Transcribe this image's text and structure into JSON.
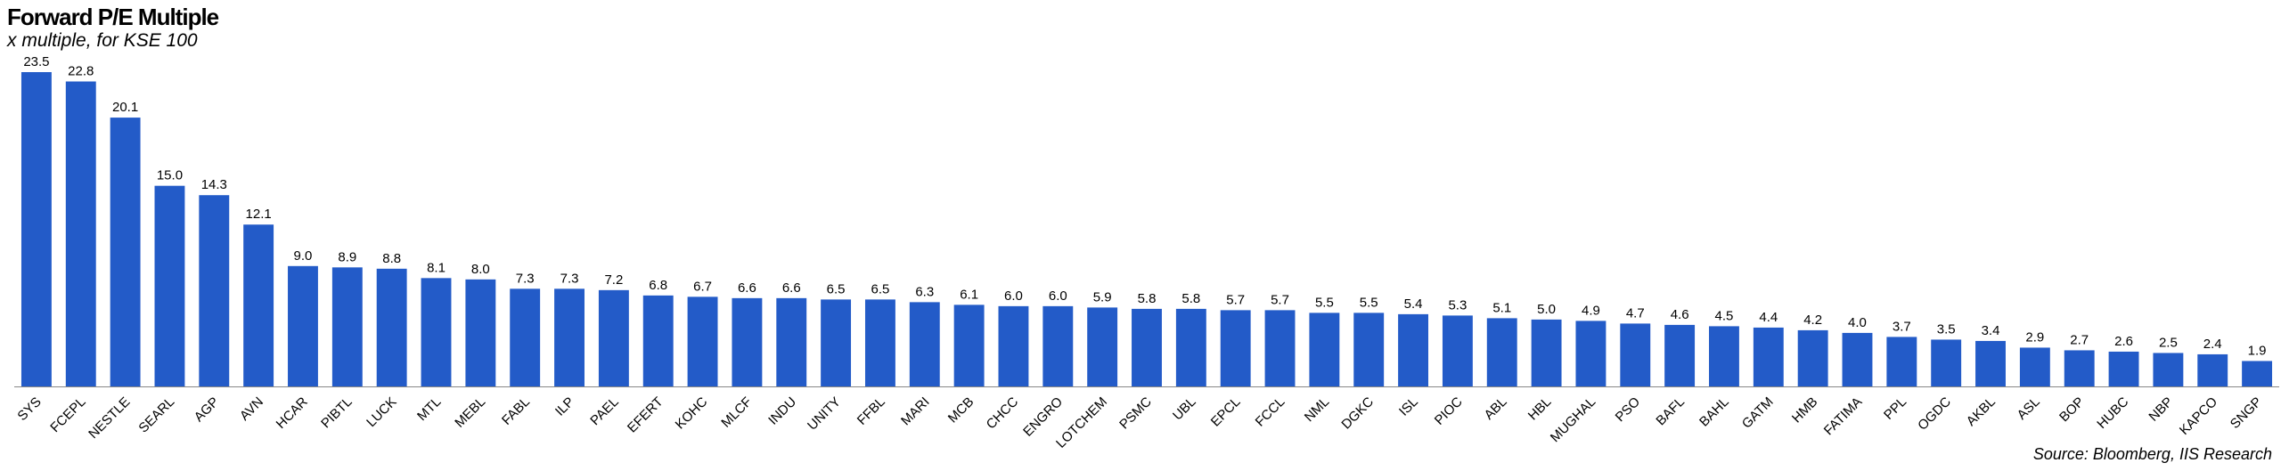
{
  "title": "Forward P/E Multiple",
  "subtitle": "x multiple, for KSE 100",
  "source": "Source: Bloomberg, IIS Research",
  "chart_data": {
    "type": "bar",
    "title": "Forward P/E Multiple",
    "subtitle": "x multiple, for KSE 100",
    "xlabel": "",
    "ylabel": "",
    "ylim": [
      0,
      23.5
    ],
    "grid": false,
    "bar_color": "#235bc8",
    "categories": [
      "SYS",
      "FCEPL",
      "NESTLE",
      "SEARL",
      "AGP",
      "AVN",
      "HCAR",
      "PIBTL",
      "LUCK",
      "MTL",
      "MEBL",
      "FABL",
      "ILP",
      "PAEL",
      "EFERT",
      "KOHC",
      "MLCF",
      "INDU",
      "UNITY",
      "FFBL",
      "MARI",
      "MCB",
      "CHCC",
      "ENGRO",
      "LOTCHEM",
      "PSMC",
      "UBL",
      "EPCL",
      "FCCL",
      "NML",
      "DGKC",
      "ISL",
      "PIOC",
      "ABL",
      "HBL",
      "MUGHAL",
      "PSO",
      "BAFL",
      "BAHL",
      "GATM",
      "HMB",
      "FATIMA",
      "PPL",
      "OGDC",
      "AKBL",
      "ASL",
      "BOP",
      "HUBC",
      "NBP",
      "KAPCO",
      "SNGP"
    ],
    "values": [
      23.5,
      22.8,
      20.1,
      15.0,
      14.3,
      12.1,
      9.0,
      8.9,
      8.8,
      8.1,
      8.0,
      7.3,
      7.3,
      7.2,
      6.8,
      6.7,
      6.6,
      6.6,
      6.5,
      6.5,
      6.3,
      6.1,
      6.0,
      6.0,
      5.9,
      5.8,
      5.8,
      5.7,
      5.7,
      5.5,
      5.5,
      5.4,
      5.3,
      5.1,
      5.0,
      4.9,
      4.7,
      4.6,
      4.5,
      4.4,
      4.2,
      4.0,
      3.7,
      3.5,
      3.4,
      2.9,
      2.7,
      2.6,
      2.5,
      2.4,
      1.9
    ],
    "value_labels": [
      "23.5",
      "22.8",
      "20.1",
      "15.0",
      "14.3",
      "12.1",
      "9.0",
      "8.9",
      "8.8",
      "8.1",
      "8.0",
      "7.3",
      "7.3",
      "7.2",
      "6.8",
      "6.7",
      "6.6",
      "6.6",
      "6.5",
      "6.5",
      "6.3",
      "6.1",
      "6.0",
      "6.0",
      "5.9",
      "5.8",
      "5.8",
      "5.7",
      "5.7",
      "5.5",
      "5.5",
      "5.4",
      "5.3",
      "5.1",
      "5.0",
      "4.9",
      "4.7",
      "4.6",
      "4.5",
      "4.4",
      "4.2",
      "4.0",
      "3.7",
      "3.5",
      "3.4",
      "2.9",
      "2.7",
      "2.6",
      "2.5",
      "2.4",
      "1.9"
    ]
  }
}
